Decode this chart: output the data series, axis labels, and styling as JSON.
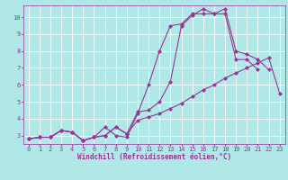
{
  "background_color": "#b0e8e8",
  "grid_color": "#ffffff",
  "line_color": "#993399",
  "marker": "D",
  "marker_size": 2.0,
  "linewidth": 0.8,
  "xlabel": "Windchill (Refroidissement éolien,°C)",
  "xlabel_fontsize": 5.5,
  "tick_fontsize": 5.0,
  "xlim": [
    -0.5,
    23.5
  ],
  "ylim": [
    2.5,
    10.7
  ],
  "yticks": [
    3,
    4,
    5,
    6,
    7,
    8,
    9,
    10
  ],
  "xticks": [
    0,
    1,
    2,
    3,
    4,
    5,
    6,
    7,
    8,
    9,
    10,
    11,
    12,
    13,
    14,
    15,
    16,
    17,
    18,
    19,
    20,
    21,
    22,
    23
  ],
  "series": [
    [
      2.8,
      2.9,
      2.9,
      3.3,
      3.2,
      2.7,
      2.9,
      3.5,
      3.0,
      2.9,
      4.3,
      6.0,
      8.0,
      9.5,
      9.6,
      10.2,
      10.2,
      10.2,
      10.2,
      7.5,
      7.5,
      6.9,
      null,
      null
    ],
    [
      2.8,
      2.9,
      2.9,
      3.3,
      3.2,
      2.7,
      2.9,
      3.0,
      3.5,
      3.1,
      4.4,
      4.5,
      5.0,
      6.2,
      9.5,
      10.1,
      10.5,
      10.2,
      10.5,
      8.0,
      7.8,
      7.5,
      6.9,
      null
    ],
    [
      2.8,
      2.9,
      2.9,
      3.3,
      3.2,
      2.7,
      2.9,
      3.0,
      3.5,
      3.1,
      3.9,
      4.1,
      4.3,
      4.6,
      4.9,
      5.3,
      5.7,
      6.0,
      6.4,
      6.7,
      7.0,
      7.3,
      7.6,
      5.5
    ]
  ]
}
